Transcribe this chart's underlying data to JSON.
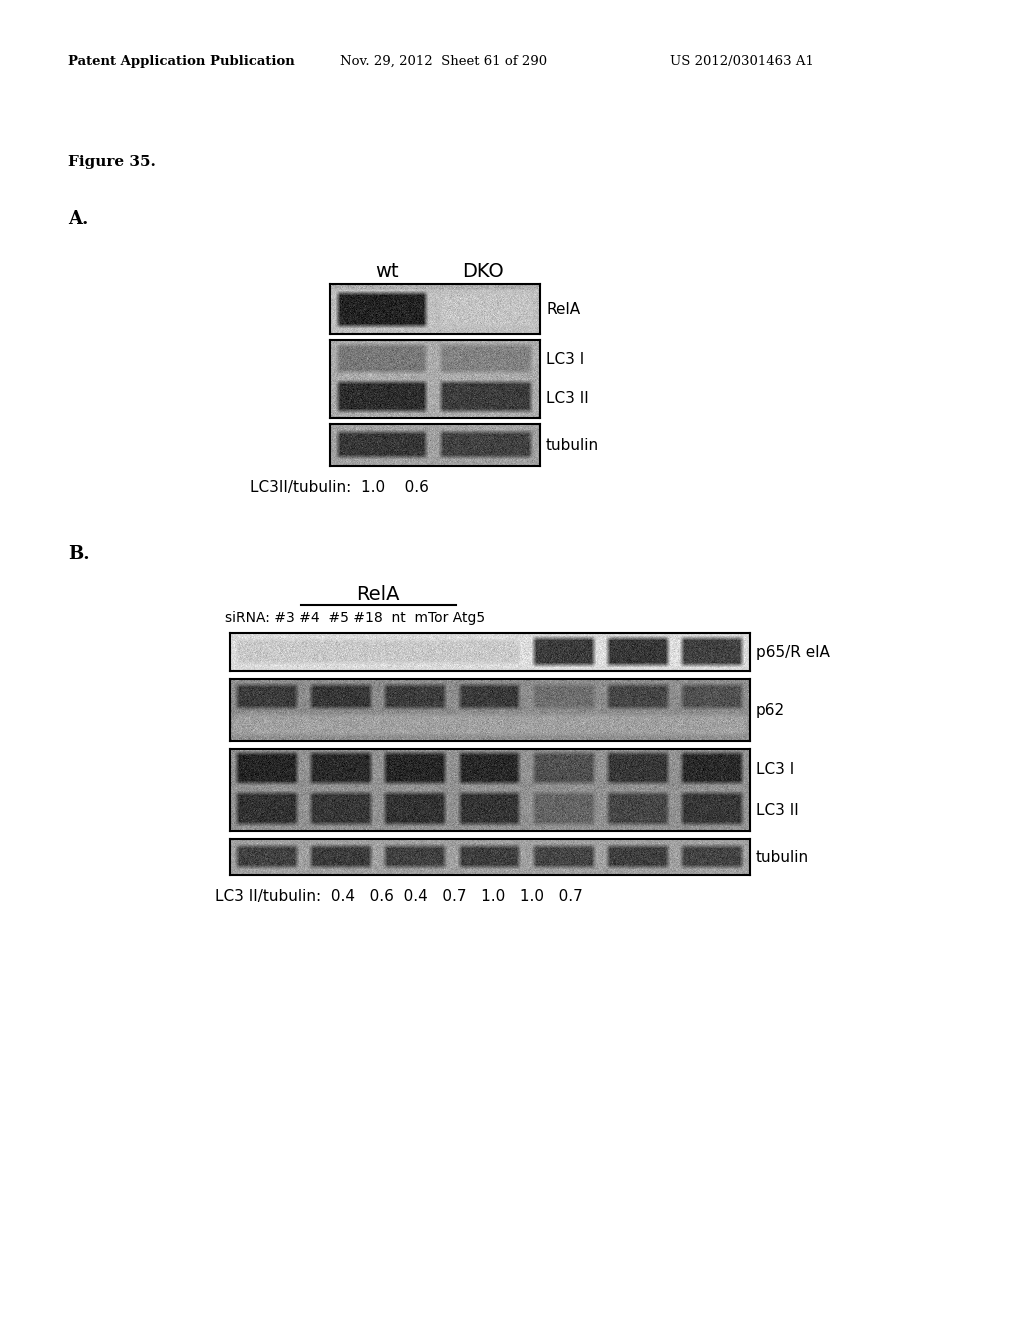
{
  "header_left": "Patent Application Publication",
  "header_mid": "Nov. 29, 2012  Sheet 61 of 290",
  "header_right": "US 2012/0301463 A1",
  "figure_label": "Figure 35.",
  "panel_A_label": "A.",
  "panel_B_label": "B.",
  "panel_A_col1": "wt",
  "panel_A_col2": "DKO",
  "panel_A_ratio_text": "LC3II/tubulin:  1.0    0.6",
  "panel_B_rela_label": "RelA",
  "panel_B_sirna_label": "siRNA: #3 #4  #5 #18  nt  mTor Atg5",
  "panel_B_ratio_text": "LC3 II/tubulin:  0.4   0.6  0.4   0.7   1.0   1.0   0.7",
  "bg_color": "#ffffff",
  "text_color": "#000000"
}
